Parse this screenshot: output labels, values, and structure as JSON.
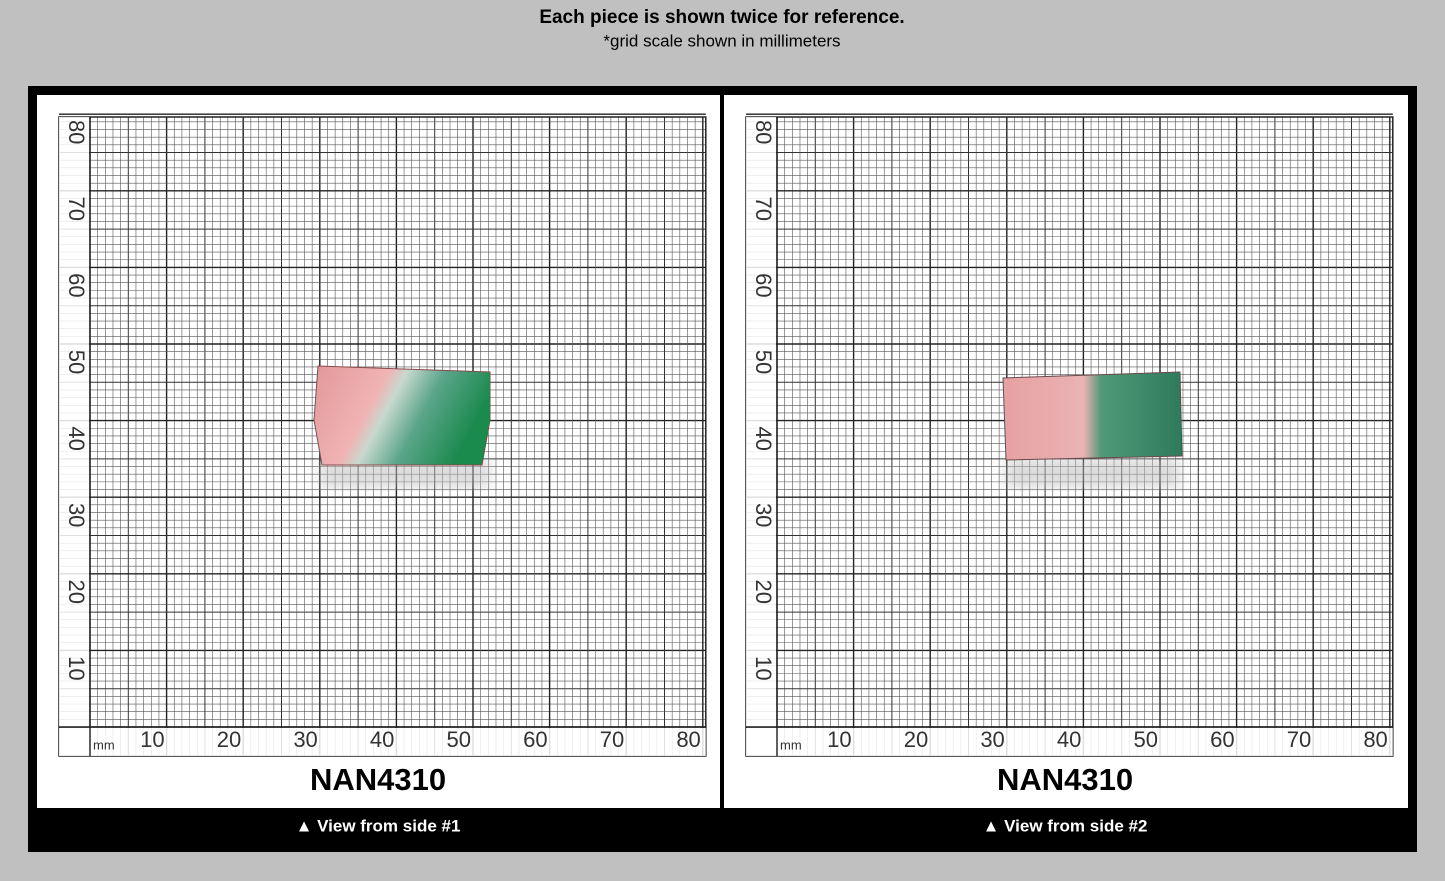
{
  "header": {
    "title": "Each piece is shown twice for reference.",
    "subtitle": "*grid scale shown in millimeters"
  },
  "scale": {
    "unit": "mm",
    "x_labels": [
      10,
      20,
      30,
      40,
      50,
      60,
      70,
      80
    ],
    "y_labels": [
      10,
      20,
      30,
      40,
      50,
      60,
      70,
      80
    ]
  },
  "panels": [
    {
      "id": "NAN4310",
      "caption": "▲ View from side #1"
    },
    {
      "id": "NAN4310",
      "caption": "▲ View from side #2"
    }
  ]
}
